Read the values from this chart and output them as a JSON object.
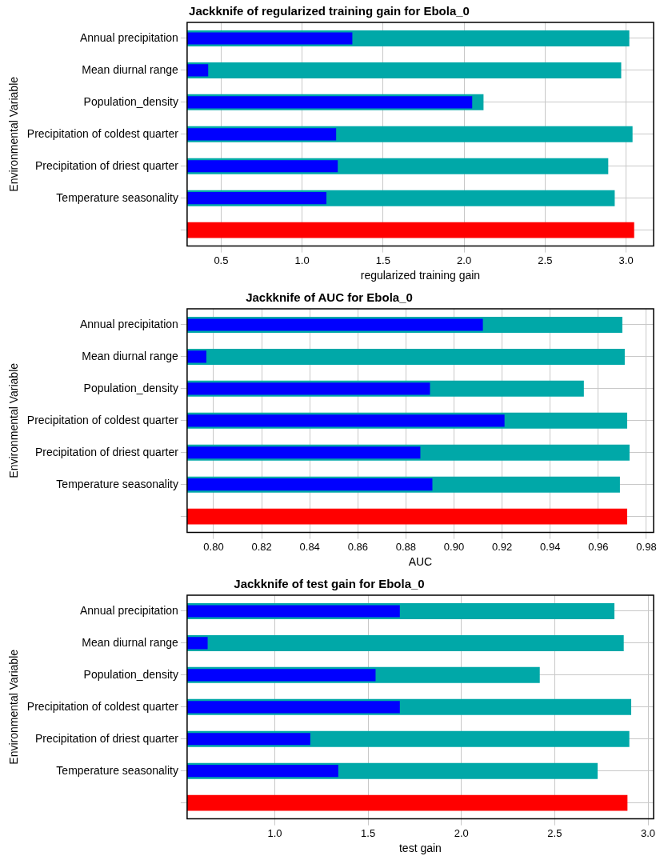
{
  "chart_data": [
    {
      "type": "bar",
      "orientation": "horizontal",
      "title": "Jackknife of regularized training gain for Ebola_0",
      "xlabel": "regularized training gain",
      "ylabel": "Environmental Variable",
      "categories": [
        "Annual precipitation",
        "Mean diurnal range",
        "Population_density",
        "Precipitation of coldest quarter",
        "Precipitation of driest quarter",
        "Temperature seasonality",
        null
      ],
      "series": [
        {
          "color": "#00a8a8",
          "values": [
            3.02,
            2.97,
            2.12,
            3.04,
            2.89,
            2.93,
            null
          ]
        },
        {
          "color": "#0000ff",
          "values": [
            1.31,
            0.42,
            2.05,
            1.21,
            1.22,
            1.15,
            null
          ]
        },
        {
          "color": "#ff0000",
          "values": [
            null,
            null,
            null,
            null,
            null,
            null,
            3.05
          ]
        }
      ],
      "xlim": [
        0.29,
        3.17
      ],
      "xticks": [
        0.5,
        {
          "value": 1,
          "label": "1.0"
        },
        1.5,
        {
          "value": 2,
          "label": "2.0"
        },
        2.5,
        {
          "value": 3,
          "label": "3.0"
        }
      ],
      "grid": true,
      "legend": false
    },
    {
      "type": "bar",
      "orientation": "horizontal",
      "title": "Jackknife of AUC for Ebola_0",
      "xlabel": "AUC",
      "ylabel": "Environmental Variable",
      "categories": [
        "Annual precipitation",
        "Mean diurnal range",
        "Population_density",
        "Precipitation of coldest quarter",
        "Precipitation of driest quarter",
        "Temperature seasonality",
        null
      ],
      "series": [
        {
          "color": "#00a8a8",
          "values": [
            0.97,
            0.971,
            0.954,
            0.972,
            0.973,
            0.969,
            null
          ]
        },
        {
          "color": "#0000ff",
          "values": [
            0.912,
            0.797,
            0.89,
            0.921,
            0.886,
            0.891,
            null
          ]
        },
        {
          "color": "#ff0000",
          "values": [
            null,
            null,
            null,
            null,
            null,
            null,
            0.972
          ]
        }
      ],
      "xlim": [
        0.789,
        0.983
      ],
      "xticks": [
        {
          "value": 0.8,
          "label": "0.80"
        },
        0.82,
        0.84,
        0.86,
        0.88,
        {
          "value": 0.9,
          "label": "0.90"
        },
        0.92,
        0.94,
        0.96,
        0.98
      ],
      "grid": true,
      "legend": false
    },
    {
      "type": "bar",
      "orientation": "horizontal",
      "title": "Jackknife of test gain for Ebola_0",
      "xlabel": "test gain",
      "ylabel": "Environmental Variable",
      "categories": [
        "Annual precipitation",
        "Mean diurnal range",
        "Population_density",
        "Precipitation of coldest quarter",
        "Precipitation of driest quarter",
        "Temperature seasonality",
        null
      ],
      "series": [
        {
          "color": "#00a8a8",
          "values": [
            2.82,
            2.87,
            2.42,
            2.91,
            2.9,
            2.73,
            null
          ]
        },
        {
          "color": "#0000ff",
          "values": [
            1.67,
            0.64,
            1.54,
            1.67,
            1.19,
            1.34,
            null
          ]
        },
        {
          "color": "#ff0000",
          "values": [
            null,
            null,
            null,
            null,
            null,
            null,
            2.89
          ]
        }
      ],
      "xlim": [
        0.53,
        3.03
      ],
      "xticks": [
        {
          "value": 1,
          "label": "1.0"
        },
        1.5,
        {
          "value": 2,
          "label": "2.0"
        },
        2.5,
        {
          "value": 3,
          "label": "3.0"
        }
      ],
      "grid": true,
      "legend": false
    }
  ]
}
